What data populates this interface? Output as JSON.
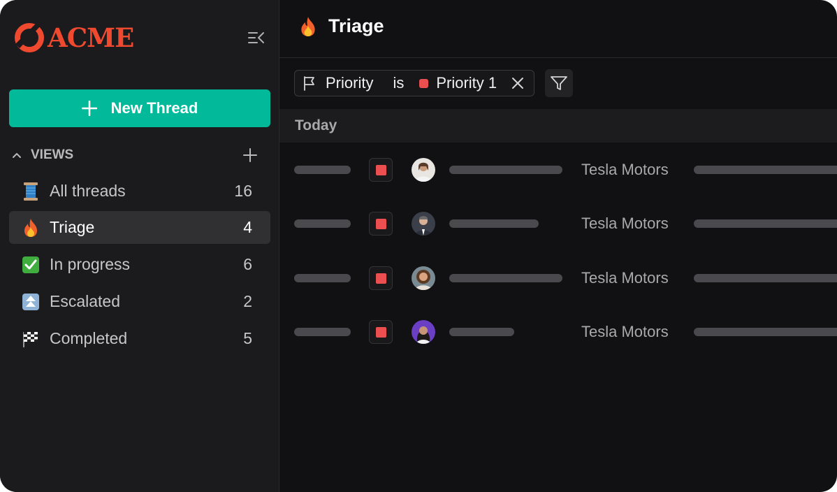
{
  "brand": {
    "name": "ACME",
    "color": "#ef4a2f"
  },
  "sidebar": {
    "new_thread_label": "New Thread",
    "views_label": "VIEWS",
    "items": [
      {
        "emoji": "spool-of-thread",
        "label": "All threads",
        "count": "16",
        "active": false
      },
      {
        "emoji": "fire",
        "label": "Triage",
        "count": "4",
        "active": true
      },
      {
        "emoji": "check-mark-button",
        "label": "In progress",
        "count": "6",
        "active": false
      },
      {
        "emoji": "double-up-arrow",
        "label": "Escalated",
        "count": "2",
        "active": false
      },
      {
        "emoji": "chequered-flag",
        "label": "Completed",
        "count": "5",
        "active": false
      }
    ]
  },
  "main": {
    "title": "Triage",
    "filter": {
      "field": "Priority",
      "operator": "is",
      "value": "Priority 1",
      "value_color": "#ec4f4f"
    },
    "group_label": "Today",
    "rows": [
      {
        "company": "Tesla Motors",
        "priority_color": "#ec4f4f"
      },
      {
        "company": "Tesla Motors",
        "priority_color": "#ec4f4f"
      },
      {
        "company": "Tesla Motors",
        "priority_color": "#ec4f4f"
      },
      {
        "company": "Tesla Motors",
        "priority_color": "#ec4f4f"
      }
    ]
  },
  "colors": {
    "accent": "#02b99a",
    "background": "#111114",
    "sidebar": "#1b1b1d"
  }
}
